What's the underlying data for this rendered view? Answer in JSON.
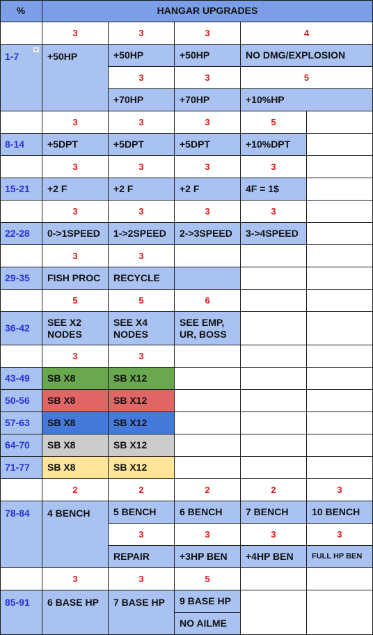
{
  "header": {
    "percent_label": "%",
    "title": "HANGAR UPGRADES"
  },
  "tiers": {
    "t1": "1-7",
    "t2": "8-14",
    "t3": "15-21",
    "t4": "22-28",
    "t5": "29-35",
    "t6": "36-42",
    "t7": "43-49",
    "t8": "50-56",
    "t9": "57-63",
    "t10": "64-70",
    "t11": "71-77",
    "t12": "78-84",
    "t13": "85-91"
  },
  "hp": {
    "cost_a": [
      "3",
      "3",
      "3",
      "4"
    ],
    "row_a": [
      "+50HP",
      "+50HP",
      "+50HP",
      "NO DMG/EXPLOSION"
    ],
    "cost_b": [
      "3",
      "3",
      "5"
    ],
    "row_b": [
      "+70HP",
      "+70HP",
      "+10%HP"
    ]
  },
  "dpt": {
    "cost": [
      "3",
      "3",
      "3",
      "5"
    ],
    "row": [
      "+5DPT",
      "+5DPT",
      "+5DPT",
      "+10%DPT"
    ]
  },
  "fish": {
    "cost": [
      "3",
      "3",
      "3",
      "3"
    ],
    "row": [
      "+2 F",
      "+2 F",
      "+2 F",
      "4F = 1$"
    ]
  },
  "speed": {
    "cost": [
      "3",
      "3",
      "3",
      "3"
    ],
    "row": [
      "0->1SPEED",
      "1->2SPEED",
      "2->3SPEED",
      "3->4SPEED"
    ]
  },
  "proc": {
    "cost": [
      "3",
      "3"
    ],
    "row": [
      "FISH PROC",
      "RECYCLE"
    ]
  },
  "see": {
    "cost": [
      "5",
      "5",
      "6"
    ],
    "row": [
      "SEE X2 NODES",
      "SEE X4 NODES",
      "SEE EMP, UR, BOSS"
    ]
  },
  "sb": {
    "cost": [
      "3",
      "3"
    ],
    "rows": [
      [
        "SB X8",
        "SB X12"
      ],
      [
        "SB X8",
        "SB X12"
      ],
      [
        "SB X8",
        "SB X12"
      ],
      [
        "SB X8",
        "SB X12"
      ],
      [
        "SB X8",
        "SB X12"
      ]
    ]
  },
  "bench": {
    "cost_a": [
      "2",
      "2",
      "2",
      "2",
      "3"
    ],
    "row_a": [
      "4 BENCH",
      "5 BENCH",
      "6 BENCH",
      "7 BENCH",
      "10 BENCH"
    ],
    "cost_b": [
      "3",
      "3",
      "3",
      "3"
    ],
    "row_b": [
      "REPAIR",
      "+3HP BEN",
      "+4HP BEN",
      "FULL HP BEN"
    ]
  },
  "base": {
    "cost": [
      "3",
      "3",
      "5"
    ],
    "row": [
      "6 BASE HP",
      "7 BASE HP",
      "9 BASE HP"
    ],
    "extra": "NO AILME"
  },
  "colors": {
    "header": "#7b9ee8",
    "blue": "#a9c2f2",
    "green": "#6aa84f",
    "red": "#e06666",
    "dark_blue": "#4479db",
    "grey": "#cccccc",
    "yellow": "#ffe599",
    "cost_text": "#d81b1b",
    "tier_text": "#2a34d6"
  }
}
